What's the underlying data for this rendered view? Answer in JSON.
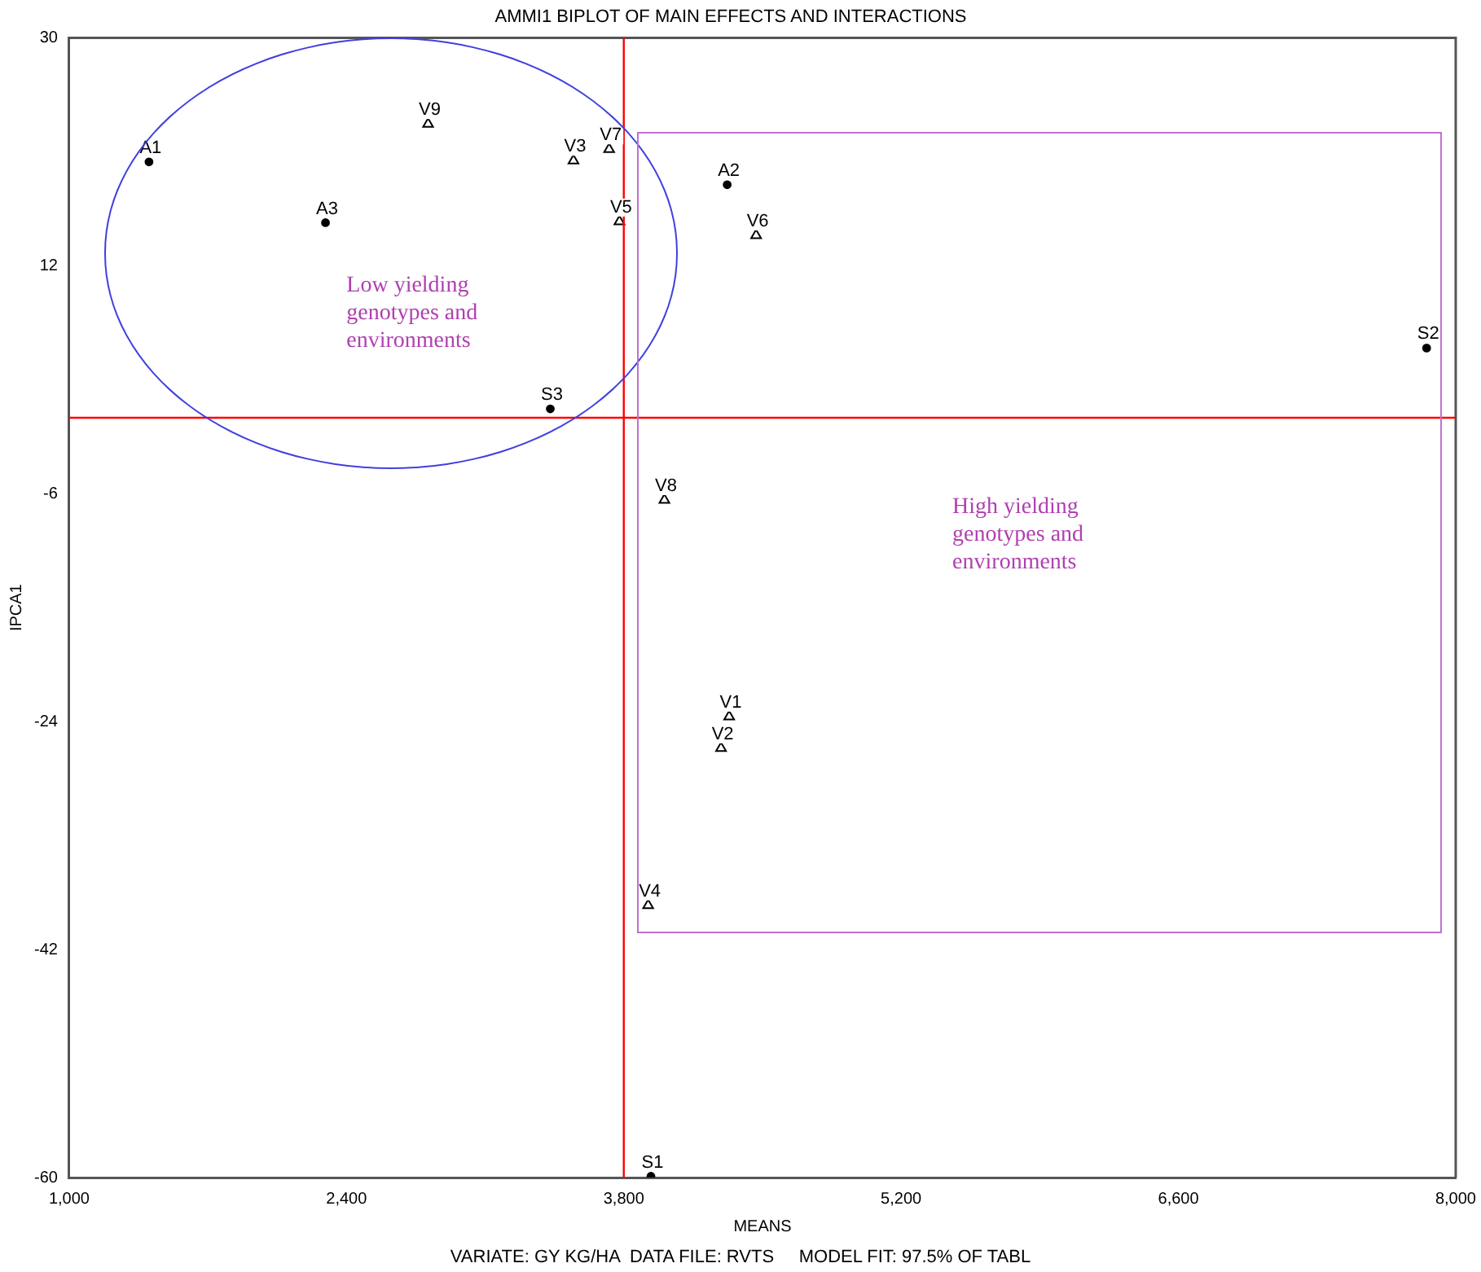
{
  "chart_data": {
    "type": "scatter",
    "title": "AMMI1 BIPLOT OF MAIN EFFECTS AND INTERACTIONS",
    "xlabel": "MEANS",
    "ylabel": "IPCA1",
    "xlim": [
      1000,
      8000
    ],
    "xticks": [
      {
        "value": 1000,
        "label": "1,000"
      },
      {
        "value": 2400,
        "label": "2,400"
      },
      {
        "value": 3800,
        "label": "3,800"
      },
      {
        "value": 5200,
        "label": "5,200"
      },
      {
        "value": 6600,
        "label": "6,600"
      },
      {
        "value": 8000,
        "label": "8,000"
      }
    ],
    "ylim": [
      -60,
      30
    ],
    "yticks": [
      -60,
      -42,
      -24,
      -6,
      12,
      30
    ],
    "grid": false,
    "legend": false,
    "series": [
      {
        "color": "#000000",
        "marker": "circle",
        "x": [
          1403,
          4322,
          2294,
          3937,
          7853,
          3429
        ],
        "values": [
          20.2,
          18.4,
          15.4,
          -59.9,
          5.5,
          0.7
        ]
      },
      {
        "color": "#000000",
        "marker": "triangle",
        "x": [
          4332,
          4291,
          3546,
          3923,
          3778,
          4468,
          3726,
          4005,
          2812
        ],
        "values": [
          -23.6,
          -26.1,
          20.3,
          -38.5,
          15.5,
          14.4,
          21.2,
          -6.5,
          23.2
        ]
      }
    ],
    "ref_lines": [
      {
        "axis": "x",
        "value": 3800,
        "color": "#ff0000"
      },
      {
        "axis": "y",
        "value": 0,
        "color": "#ff0000"
      }
    ],
    "annotations": [
      "Low yielding genotypes and environments",
      "High yielding genotypes and environments",
      "VARIATE: GY KG/HA  DATA FILE: RVTS     MODEL FIT: 97.5% OF TABL",
      {
        "text": "A1",
        "x": 1403,
        "y": 20.2
      },
      {
        "text": "A2",
        "x": 4322,
        "y": 18.4
      },
      {
        "text": "A3",
        "x": 2294,
        "y": 15.4
      },
      {
        "text": "S1",
        "x": 3937,
        "y": -59.9
      },
      {
        "text": "S2",
        "x": 7853,
        "y": 5.5
      },
      {
        "text": "S3",
        "x": 3429,
        "y": 0.7
      },
      {
        "text": "V1",
        "x": 4332,
        "y": -23.6
      },
      {
        "text": "V2",
        "x": 4291,
        "y": -26.1
      },
      {
        "text": "V3",
        "x": 3546,
        "y": 20.3
      },
      {
        "text": "V4",
        "x": 3923,
        "y": -38.5
      },
      {
        "text": "V5",
        "x": 3778,
        "y": 15.5
      },
      {
        "text": "V6",
        "x": 4468,
        "y": 14.4
      },
      {
        "text": "V7",
        "x": 3726,
        "y": 21.2
      },
      {
        "text": "V8",
        "x": 4005,
        "y": -6.5
      },
      {
        "text": "V9",
        "x": 2812,
        "y": 23.2
      }
    ]
  }
}
